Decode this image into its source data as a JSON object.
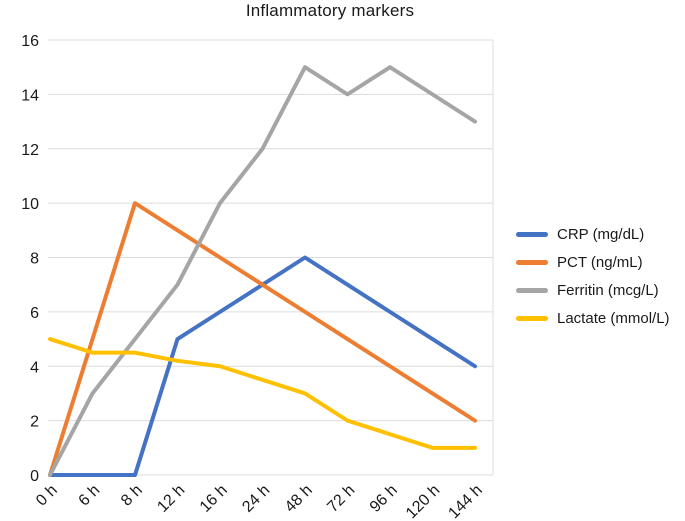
{
  "chart_data": {
    "type": "line",
    "title": "Inflammatory markers",
    "categories": [
      "0 h",
      "6 h",
      "8 h",
      "12 h",
      "16 h",
      "24 h",
      "48 h",
      "72 h",
      "96 h",
      "120 h",
      "144 h"
    ],
    "series": [
      {
        "name": "CRP (mg/dL)",
        "color": "#4472C4",
        "values": [
          0,
          0,
          0,
          5,
          6,
          7,
          8,
          7,
          6,
          5,
          4
        ]
      },
      {
        "name": "PCT (ng/mL)",
        "color": "#ED7D31",
        "values": [
          0,
          5,
          10,
          9,
          8,
          7,
          6,
          5,
          4,
          3,
          2
        ]
      },
      {
        "name": "Ferritin (mcg/L)",
        "color": "#A5A5A5",
        "values": [
          0,
          3,
          5,
          7,
          10,
          12,
          15,
          14,
          15,
          14,
          13
        ]
      },
      {
        "name": "Lactate (mmol/L)",
        "color": "#FFC000",
        "values": [
          5,
          4.5,
          4.5,
          4.2,
          4,
          3.5,
          3,
          2,
          1.5,
          1,
          1
        ]
      }
    ],
    "xlabel": "",
    "ylabel": "",
    "ylim": [
      0,
      16
    ],
    "yticks": [
      0,
      2,
      4,
      6,
      8,
      10,
      12,
      14,
      16
    ],
    "grid": true,
    "gridline_color": "#DCDCDC",
    "text_color": "#1a1a1a",
    "background": "#FFFFFF",
    "legend_position": "right"
  }
}
